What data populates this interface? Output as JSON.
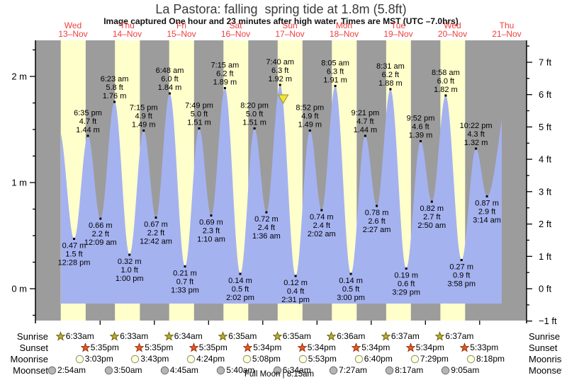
{
  "header": {
    "title": "La Pastora: falling  spring tide at 1.8m (5.8ft)",
    "subtitle": "Image captured One hour and 23 minutes after high water. Times are MST (UTC –7.0hrs)",
    "days": [
      {
        "weekday": "Wed",
        "date": "13–Nov"
      },
      {
        "weekday": "Thu",
        "date": "14–Nov"
      },
      {
        "weekday": "Fri",
        "date": "15–Nov"
      },
      {
        "weekday": "Sat",
        "date": "16–Nov"
      },
      {
        "weekday": "Sun",
        "date": "17–Nov"
      },
      {
        "weekday": "Mon",
        "date": "18–Nov"
      },
      {
        "weekday": "Tue",
        "date": "19–Nov"
      },
      {
        "weekday": "Wed",
        "date": "20–Nov"
      },
      {
        "weekday": "Thu",
        "date": "21–Nov"
      }
    ]
  },
  "axes": {
    "left_unit": "m",
    "right_unit": "ft",
    "left_labels": [
      "0 m",
      "1 m",
      "2 m"
    ],
    "right_labels": [
      "−1 ft",
      "0 ft",
      "1 ft",
      "2 ft",
      "3 ft",
      "4 ft",
      "5 ft",
      "6 ft",
      "7 ft"
    ]
  },
  "chart_data": {
    "type": "area",
    "title": "La Pastora tide heights",
    "x_axis_days": [
      "Wed 13–Nov",
      "Thu 14–Nov",
      "Fri 15–Nov",
      "Sat 16–Nov",
      "Sun 17–Nov",
      "Mon 18–Nov",
      "Tue 19–Nov",
      "Wed 20–Nov",
      "Thu 21–Nov"
    ],
    "y_left_unit": "m",
    "y_right_unit": "ft",
    "ylim_m": [
      -0.31,
      2.35
    ],
    "grid": false,
    "tide_events": [
      {
        "day_index": 0,
        "date": "Wed 13–Nov",
        "time": "12:28 pm",
        "type": "low",
        "height_m": 0.47,
        "height_ft": 1.5
      },
      {
        "day_index": 0,
        "date": "Wed 13–Nov",
        "time": "6:35 pm",
        "type": "high",
        "height_m": 1.44,
        "height_ft": 4.7
      },
      {
        "day_index": 1,
        "date": "Thu 14–Nov",
        "time": "12:09 am",
        "type": "low",
        "height_m": 0.66,
        "height_ft": 2.2
      },
      {
        "day_index": 1,
        "date": "Thu 14–Nov",
        "time": "6:23 am",
        "type": "high",
        "height_m": 1.76,
        "height_ft": 5.8
      },
      {
        "day_index": 1,
        "date": "Thu 14–Nov",
        "time": "1:00 pm",
        "type": "low",
        "height_m": 0.32,
        "height_ft": 1.0
      },
      {
        "day_index": 1,
        "date": "Thu 14–Nov",
        "time": "7:15 pm",
        "type": "high",
        "height_m": 1.49,
        "height_ft": 4.9
      },
      {
        "day_index": 2,
        "date": "Fri 15–Nov",
        "time": "12:42 am",
        "type": "low",
        "height_m": 0.67,
        "height_ft": 2.2
      },
      {
        "day_index": 2,
        "date": "Fri 15–Nov",
        "time": "6:48 am",
        "type": "high",
        "height_m": 1.84,
        "height_ft": 6.0
      },
      {
        "day_index": 2,
        "date": "Fri 15–Nov",
        "time": "1:33 pm",
        "type": "low",
        "height_m": 0.21,
        "height_ft": 0.7
      },
      {
        "day_index": 2,
        "date": "Fri 15–Nov",
        "time": "7:49 pm",
        "type": "high",
        "height_m": 1.51,
        "height_ft": 5.0
      },
      {
        "day_index": 3,
        "date": "Sat 16–Nov",
        "time": "1:10 am",
        "type": "low",
        "height_m": 0.69,
        "height_ft": 2.3
      },
      {
        "day_index": 3,
        "date": "Sat 16–Nov",
        "time": "7:15 am",
        "type": "high",
        "height_m": 1.89,
        "height_ft": 6.2
      },
      {
        "day_index": 3,
        "date": "Sat 16–Nov",
        "time": "2:02 pm",
        "type": "low",
        "height_m": 0.14,
        "height_ft": 0.5
      },
      {
        "day_index": 3,
        "date": "Sat 16–Nov",
        "time": "8:20 pm",
        "type": "high",
        "height_m": 1.51,
        "height_ft": 5.0
      },
      {
        "day_index": 4,
        "date": "Sun 17–Nov",
        "time": "1:36 am",
        "type": "low",
        "height_m": 0.72,
        "height_ft": 2.4
      },
      {
        "day_index": 4,
        "date": "Sun 17–Nov",
        "time": "7:40 am",
        "type": "high",
        "height_m": 1.92,
        "height_ft": 6.3
      },
      {
        "day_index": 4,
        "date": "Sun 17–Nov",
        "time": "2:31 pm",
        "type": "low",
        "height_m": 0.12,
        "height_ft": 0.4
      },
      {
        "day_index": 4,
        "date": "Sun 17–Nov",
        "time": "8:52 pm",
        "type": "high",
        "height_m": 1.49,
        "height_ft": 4.9
      },
      {
        "day_index": 5,
        "date": "Mon 18–Nov",
        "time": "2:02 am",
        "type": "low",
        "height_m": 0.74,
        "height_ft": 2.4
      },
      {
        "day_index": 5,
        "date": "Mon 18–Nov",
        "time": "8:05 am",
        "type": "high",
        "height_m": 1.91,
        "height_ft": 6.3
      },
      {
        "day_index": 5,
        "date": "Mon 18–Nov",
        "time": "3:00 pm",
        "type": "low",
        "height_m": 0.14,
        "height_ft": 0.5
      },
      {
        "day_index": 5,
        "date": "Mon 18–Nov",
        "time": "9:21 pm",
        "type": "high",
        "height_m": 1.44,
        "height_ft": 4.7
      },
      {
        "day_index": 6,
        "date": "Tue 19–Nov",
        "time": "2:27 am",
        "type": "low",
        "height_m": 0.78,
        "height_ft": 2.6
      },
      {
        "day_index": 6,
        "date": "Tue 19–Nov",
        "time": "8:31 am",
        "type": "high",
        "height_m": 1.88,
        "height_ft": 6.2
      },
      {
        "day_index": 6,
        "date": "Tue 19–Nov",
        "time": "3:29 pm",
        "type": "low",
        "height_m": 0.19,
        "height_ft": 0.6
      },
      {
        "day_index": 6,
        "date": "Tue 19–Nov",
        "time": "9:52 pm",
        "type": "high",
        "height_m": 1.39,
        "height_ft": 4.6
      },
      {
        "day_index": 7,
        "date": "Wed 20–Nov",
        "time": "2:50 am",
        "type": "low",
        "height_m": 0.82,
        "height_ft": 2.7
      },
      {
        "day_index": 7,
        "date": "Wed 20–Nov",
        "time": "8:58 am",
        "type": "high",
        "height_m": 1.82,
        "height_ft": 6.0
      },
      {
        "day_index": 7,
        "date": "Wed 20–Nov",
        "time": "3:58 pm",
        "type": "low",
        "height_m": 0.27,
        "height_ft": 0.9
      },
      {
        "day_index": 7,
        "date": "Wed 20–Nov",
        "time": "10:22 pm",
        "type": "high",
        "height_m": 1.32,
        "height_ft": 4.3
      },
      {
        "day_index": 8,
        "date": "Thu 21–Nov",
        "time": "3:14 am",
        "type": "low",
        "height_m": 0.87,
        "height_ft": 2.9
      }
    ],
    "curve_edge_controls": {
      "start": {
        "day_index": 0,
        "time": "5:55 am",
        "height_m": 1.49
      },
      "end": {
        "day_index": 8,
        "time": "1:15 pm",
        "height_m": 1.85
      }
    },
    "current_time_marker": {
      "day_index": 4,
      "time": "9:03 am",
      "symbol": "yellow-triangle-down"
    },
    "high_label_line_order": [
      "time",
      "ft",
      "m"
    ],
    "low_label_line_order": [
      "m",
      "ft",
      "time"
    ]
  },
  "astro": {
    "rows": [
      {
        "label": "Sunrise",
        "icon": "sunrise-star",
        "times": [
          "6:33am",
          "6:33am",
          "6:34am",
          "6:35am",
          "6:35am",
          "6:36am",
          "6:37am",
          "6:37am"
        ]
      },
      {
        "label": "Sunset",
        "icon": "sunset-star",
        "times": [
          "5:35pm",
          "5:35pm",
          "5:35pm",
          "5:34pm",
          "5:34pm",
          "5:34pm",
          "5:34pm",
          "5:33pm"
        ]
      },
      {
        "label": "Moonrise",
        "icon": "moonrise-circle",
        "times": [
          "3:03pm",
          "3:43pm",
          "4:24pm",
          "5:08pm",
          "5:53pm",
          "6:40pm",
          "7:29pm",
          "8:18pm"
        ]
      },
      {
        "label": "Moonset",
        "icon": "moonset-circle",
        "times": [
          "2:54am",
          "3:50am",
          "4:45am",
          "5:40am",
          "6:34am",
          "7:27am",
          "8:17am",
          "9:05am"
        ]
      }
    ],
    "footer": "Full Moon | 8:15am"
  },
  "colors": {
    "night_band": "#9c9c9c",
    "day_band": "#ffffcc",
    "tide_fill": "#a5b2f0",
    "date_red": "#f23d3d",
    "sunrise_star": "#bcae2c",
    "sunrise_star_edge": "#6f6314",
    "sunset_star": "#dd5f1f",
    "sunset_star_edge": "#a02c10",
    "moonrise_fill": "#ffffd5",
    "moonrise_edge": "#8a8a8a",
    "moonset_fill": "#b5b5b5",
    "moonset_edge": "#6e6e6e",
    "marker_yellow": "#f2e23c",
    "marker_edge": "#96911e"
  }
}
